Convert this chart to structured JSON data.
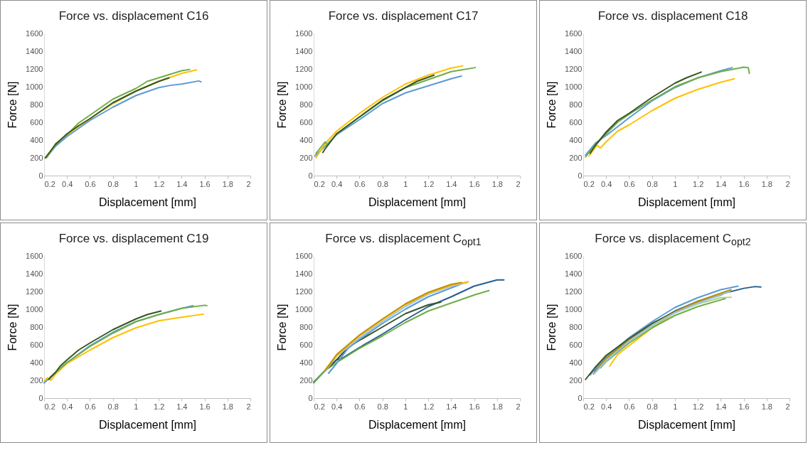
{
  "chart_data": [
    {
      "type": "line",
      "title": "Force vs. displacement C16",
      "xlabel": "Displacement [mm]",
      "ylabel": "Force [N]",
      "xlim": [
        0.2,
        2
      ],
      "xticks": [
        0.2,
        0.4,
        0.6,
        0.8,
        1,
        1.2,
        1.4,
        1.6,
        1.8,
        2
      ],
      "ylim": [
        0,
        1600
      ],
      "yticks": [
        0,
        200,
        400,
        600,
        800,
        1000,
        1200,
        1400,
        1600
      ],
      "grid": false,
      "legend": false,
      "series": [
        {
          "color": "#5b9bd5",
          "x": [
            0.22,
            0.3,
            0.4,
            0.6,
            0.8,
            1.0,
            1.2,
            1.3,
            1.4,
            1.55,
            1.57
          ],
          "values": [
            200,
            330,
            440,
            620,
            770,
            900,
            990,
            1015,
            1030,
            1065,
            1055
          ]
        },
        {
          "color": "#ffc000",
          "x": [
            0.22,
            0.3,
            0.4,
            0.6,
            0.8,
            1.0,
            1.2,
            1.4,
            1.53
          ],
          "values": [
            200,
            350,
            460,
            640,
            810,
            950,
            1060,
            1150,
            1190
          ]
        },
        {
          "color": "#70ad47",
          "x": [
            0.22,
            0.3,
            0.35,
            0.4,
            0.5,
            0.6,
            0.8,
            1.0,
            1.1,
            1.2,
            1.4,
            1.47
          ],
          "values": [
            200,
            360,
            410,
            460,
            590,
            680,
            860,
            980,
            1060,
            1100,
            1180,
            1195
          ]
        },
        {
          "color": "#375623",
          "x": [
            0.21,
            0.3,
            0.4,
            0.5,
            0.6,
            0.8,
            1.0,
            1.2,
            1.29
          ],
          "values": [
            200,
            350,
            470,
            560,
            640,
            820,
            950,
            1060,
            1100
          ]
        }
      ]
    },
    {
      "type": "line",
      "title": "Force vs. displacement C17",
      "xlabel": "Displacement [mm]",
      "ylabel": "Force [N]",
      "xlim": [
        0.2,
        2
      ],
      "xticks": [
        0.2,
        0.4,
        0.6,
        0.8,
        1,
        1.2,
        1.4,
        1.6,
        1.8,
        2
      ],
      "ylim": [
        0,
        1600
      ],
      "yticks": [
        0,
        200,
        400,
        600,
        800,
        1000,
        1200,
        1400,
        1600
      ],
      "grid": false,
      "legend": false,
      "series": [
        {
          "color": "#5b9bd5",
          "x": [
            0.21,
            0.3,
            0.4,
            0.6,
            0.8,
            1.0,
            1.2,
            1.4,
            1.49
          ],
          "values": [
            220,
            330,
            460,
            630,
            810,
            930,
            1010,
            1090,
            1120
          ]
        },
        {
          "color": "#ffc000",
          "x": [
            0.22,
            0.3,
            0.4,
            0.6,
            0.8,
            1.0,
            1.2,
            1.4,
            1.5
          ],
          "values": [
            200,
            360,
            500,
            700,
            880,
            1030,
            1130,
            1210,
            1235
          ]
        },
        {
          "color": "#70ad47",
          "x": [
            0.22,
            0.3,
            0.32,
            0.4,
            0.6,
            0.8,
            1.0,
            1.2,
            1.4,
            1.61
          ],
          "values": [
            250,
            380,
            340,
            470,
            660,
            840,
            990,
            1080,
            1170,
            1215
          ]
        },
        {
          "color": "#375623",
          "x": [
            0.28,
            0.3,
            0.4,
            0.6,
            0.8,
            1.0,
            1.1,
            1.25
          ],
          "values": [
            260,
            300,
            470,
            660,
            850,
            990,
            1060,
            1130
          ]
        }
      ]
    },
    {
      "type": "line",
      "title": "Force vs. displacement C18",
      "xlabel": "Displacement [mm]",
      "ylabel": "Force [N]",
      "xlim": [
        0.2,
        2
      ],
      "xticks": [
        0.2,
        0.4,
        0.6,
        0.8,
        1,
        1.2,
        1.4,
        1.6,
        1.8,
        2
      ],
      "ylim": [
        0,
        1600
      ],
      "yticks": [
        0,
        200,
        400,
        600,
        800,
        1000,
        1200,
        1400,
        1600
      ],
      "grid": false,
      "legend": false,
      "series": [
        {
          "color": "#5b9bd5",
          "x": [
            0.22,
            0.31,
            0.4,
            0.6,
            0.8,
            1.0,
            1.2,
            1.4,
            1.5
          ],
          "values": [
            230,
            370,
            450,
            650,
            840,
            990,
            1100,
            1180,
            1215
          ]
        },
        {
          "color": "#ffc000",
          "x": [
            0.25,
            0.32,
            0.35,
            0.4,
            0.5,
            0.6,
            0.8,
            1.0,
            1.2,
            1.4,
            1.52
          ],
          "values": [
            220,
            340,
            310,
            380,
            500,
            570,
            730,
            870,
            970,
            1050,
            1090
          ]
        },
        {
          "color": "#70ad47",
          "x": [
            0.22,
            0.3,
            0.4,
            0.5,
            0.6,
            0.8,
            1.0,
            1.2,
            1.4,
            1.6,
            1.64,
            1.65
          ],
          "values": [
            210,
            340,
            470,
            600,
            690,
            850,
            1000,
            1100,
            1170,
            1220,
            1215,
            1150
          ]
        },
        {
          "color": "#375623",
          "x": [
            0.26,
            0.3,
            0.4,
            0.5,
            0.6,
            0.8,
            1.0,
            1.1,
            1.23
          ],
          "values": [
            250,
            330,
            490,
            620,
            700,
            880,
            1040,
            1100,
            1165
          ]
        }
      ]
    },
    {
      "type": "line",
      "title": "Force vs. displacement C19",
      "xlabel": "Displacement [mm]",
      "ylabel": "Force [N]",
      "xlim": [
        0.2,
        2
      ],
      "xticks": [
        0.2,
        0.4,
        0.6,
        0.8,
        1,
        1.2,
        1.4,
        1.6,
        1.8,
        2
      ],
      "ylim": [
        0,
        1600
      ],
      "yticks": [
        0,
        200,
        400,
        600,
        800,
        1000,
        1200,
        1400,
        1600
      ],
      "grid": false,
      "legend": false,
      "series": [
        {
          "color": "#5b9bd5",
          "x": [
            0.2,
            0.3,
            0.4,
            0.6,
            0.8,
            1.0,
            1.2,
            1.4,
            1.5
          ],
          "values": [
            170,
            290,
            400,
            590,
            740,
            860,
            940,
            1010,
            1040
          ]
        },
        {
          "color": "#ffc000",
          "x": [
            0.2,
            0.23,
            0.26,
            0.3,
            0.4,
            0.6,
            0.8,
            1.0,
            1.2,
            1.4,
            1.59
          ],
          "values": [
            190,
            230,
            200,
            270,
            390,
            540,
            680,
            790,
            870,
            910,
            945
          ]
        },
        {
          "color": "#70ad47",
          "x": [
            0.25,
            0.3,
            0.4,
            0.6,
            0.8,
            1.0,
            1.2,
            1.4,
            1.6,
            1.62
          ],
          "values": [
            230,
            290,
            400,
            580,
            730,
            860,
            940,
            1010,
            1045,
            1040
          ]
        },
        {
          "color": "#375623",
          "x": [
            0.24,
            0.3,
            0.34,
            0.4,
            0.5,
            0.6,
            0.8,
            1.0,
            1.1,
            1.22
          ],
          "values": [
            210,
            290,
            360,
            430,
            540,
            620,
            770,
            890,
            940,
            980
          ]
        }
      ]
    },
    {
      "type": "line",
      "title": "Force vs. displacement C$_{opt1}$",
      "xlabel": "Displacement [mm]",
      "ylabel": "Force [N]",
      "xlim": [
        0.2,
        2
      ],
      "xticks": [
        0.2,
        0.4,
        0.6,
        0.8,
        1,
        1.2,
        1.4,
        1.6,
        1.8,
        2
      ],
      "ylim": [
        0,
        1600
      ],
      "yticks": [
        0,
        200,
        400,
        600,
        800,
        1000,
        1200,
        1400,
        1600
      ],
      "grid": false,
      "legend": false,
      "series": [
        {
          "color": "#255e91",
          "x": [
            0.2,
            0.3,
            0.4,
            0.45,
            0.6,
            0.8,
            1.0,
            1.2,
            1.4,
            1.6,
            1.8,
            1.86
          ],
          "values": [
            180,
            310,
            430,
            450,
            570,
            720,
            880,
            1030,
            1140,
            1260,
            1330,
            1330
          ]
        },
        {
          "color": "#70ad47",
          "x": [
            0.2,
            0.3,
            0.4,
            0.6,
            0.8,
            1.0,
            1.2,
            1.4,
            1.6,
            1.73
          ],
          "values": [
            170,
            310,
            400,
            560,
            700,
            850,
            980,
            1070,
            1160,
            1210
          ]
        },
        {
          "color": "#375623",
          "x": [
            0.3,
            0.4,
            0.5,
            0.6,
            0.8,
            1.0,
            1.2,
            1.31
          ],
          "values": [
            310,
            430,
            570,
            650,
            800,
            950,
            1050,
            1080
          ]
        },
        {
          "color": "#5b9bd5",
          "x": [
            0.33,
            0.4,
            0.5,
            0.6,
            0.8,
            1.0,
            1.2,
            1.4,
            1.48
          ],
          "values": [
            280,
            390,
            560,
            660,
            840,
            1000,
            1140,
            1240,
            1280
          ]
        },
        {
          "color": "#9dc3e6",
          "x": [
            0.3,
            0.4,
            0.6,
            0.8,
            1.0,
            1.2,
            1.4,
            1.54
          ],
          "values": [
            300,
            470,
            680,
            860,
            1030,
            1170,
            1260,
            1300
          ]
        },
        {
          "color": "#ffc000",
          "x": [
            0.3,
            0.4,
            0.6,
            0.8,
            1.0,
            1.2,
            1.4,
            1.55
          ],
          "values": [
            320,
            480,
            700,
            880,
            1050,
            1180,
            1270,
            1310
          ]
        },
        {
          "color": "#bf8f00",
          "x": [
            0.3,
            0.4,
            0.6,
            0.8,
            1.0,
            1.2,
            1.4,
            1.49
          ],
          "values": [
            310,
            490,
            710,
            890,
            1060,
            1190,
            1280,
            1300
          ]
        }
      ]
    },
    {
      "type": "line",
      "title": "Force vs. displacement C$_{opt2}$",
      "xlabel": "Displacement [mm]",
      "ylabel": "Force [N]",
      "xlim": [
        0.2,
        2
      ],
      "xticks": [
        0.2,
        0.4,
        0.6,
        0.8,
        1,
        1.2,
        1.4,
        1.6,
        1.8,
        2
      ],
      "ylim": [
        0,
        1600
      ],
      "yticks": [
        0,
        200,
        400,
        600,
        800,
        1000,
        1200,
        1400,
        1600
      ],
      "grid": false,
      "legend": false,
      "series": [
        {
          "color": "#255e91",
          "x": [
            0.3,
            0.5,
            0.8,
            1.0,
            1.2,
            1.4,
            1.6,
            1.7,
            1.75
          ],
          "values": [
            300,
            560,
            830,
            980,
            1090,
            1170,
            1235,
            1255,
            1250
          ]
        },
        {
          "color": "#5b9bd5",
          "x": [
            0.26,
            0.4,
            0.6,
            0.8,
            1.0,
            1.2,
            1.4,
            1.55
          ],
          "values": [
            260,
            460,
            680,
            860,
            1020,
            1130,
            1220,
            1260
          ]
        },
        {
          "color": "#ffc000",
          "x": [
            0.43,
            0.5,
            0.6,
            0.8,
            1.0,
            1.2,
            1.45
          ],
          "values": [
            360,
            490,
            590,
            790,
            960,
            1080,
            1190
          ]
        },
        {
          "color": "#70ad47",
          "x": [
            0.35,
            0.4,
            0.6,
            0.8,
            1.0,
            1.2,
            1.44
          ],
          "values": [
            340,
            410,
            620,
            790,
            930,
            1030,
            1120
          ]
        },
        {
          "color": "#a9d18e",
          "x": [
            0.33,
            0.4,
            0.6,
            0.8,
            1.0,
            1.2,
            1.4,
            1.49
          ],
          "values": [
            330,
            430,
            640,
            810,
            960,
            1060,
            1130,
            1135
          ]
        },
        {
          "color": "#375623",
          "x": [
            0.22,
            0.3,
            0.4,
            0.6,
            0.8,
            1.0,
            1.2,
            1.4,
            1.48
          ],
          "values": [
            210,
            340,
            480,
            670,
            840,
            970,
            1080,
            1160,
            1210
          ]
        },
        {
          "color": "#bf8f00",
          "x": [
            0.29,
            0.4,
            0.6,
            0.8,
            1.0,
            1.2,
            1.49
          ],
          "values": [
            270,
            450,
            650,
            820,
            970,
            1090,
            1220
          ]
        },
        {
          "color": "#9dc3e6",
          "x": [
            0.3,
            0.4,
            0.6,
            0.8,
            1.0,
            1.2,
            1.48
          ],
          "values": [
            280,
            420,
            640,
            820,
            960,
            1070,
            1200
          ]
        }
      ]
    }
  ]
}
